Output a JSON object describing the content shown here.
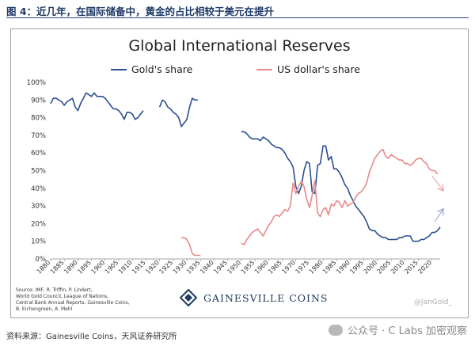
{
  "report": {
    "title": "图 4：近几年，在国际储备中，黄金的占比相较于美元在提升",
    "source": "资料来源：Gainesville Coins，天风证券研究所"
  },
  "watermark": {
    "handle": "@JanGold_",
    "wechat": "公众号 · C Labs 加密观察"
  },
  "colors": {
    "gold": "#2b4f8e",
    "usd": "#e8898a",
    "arrow_gold": "#9aa8d0",
    "arrow_usd": "#efa3a3"
  },
  "brand": {
    "name": "GAINESVILLE COINS",
    "logo_icon": "diamond-logo-icon"
  },
  "chart_data": {
    "type": "line",
    "title": "Global International Reserves",
    "legend_position": "top",
    "xlim": [
      1880,
      2023
    ],
    "ylim": [
      0,
      100
    ],
    "x_ticks": [
      1880,
      1885,
      1890,
      1895,
      1900,
      1905,
      1910,
      1915,
      1920,
      1925,
      1930,
      1935,
      1940,
      1945,
      1950,
      1955,
      1960,
      1965,
      1970,
      1975,
      1980,
      1985,
      1990,
      1995,
      2000,
      2005,
      2010,
      2015,
      2020
    ],
    "y_ticks": [
      0,
      10,
      20,
      30,
      40,
      50,
      60,
      70,
      80,
      90,
      100
    ],
    "y_tick_suffix": "%",
    "source_note": [
      "Source: IMF, R. Triffin, P. Lindert,",
      "World Gold Council, League of Nations,",
      "Central Bank Annual Reports, Gainesville Coins,",
      "B. Eichengreen, A. Mehl"
    ],
    "series": [
      {
        "name": "Gold's share",
        "color": "#2b4f8e",
        "segments": [
          [
            [
              1880,
              88
            ],
            [
              1881,
              91
            ],
            [
              1882,
              91
            ],
            [
              1883,
              90
            ],
            [
              1884,
              89
            ],
            [
              1885,
              87
            ],
            [
              1886,
              89
            ],
            [
              1887,
              90
            ],
            [
              1888,
              91
            ],
            [
              1889,
              86
            ],
            [
              1890,
              84
            ],
            [
              1891,
              88
            ],
            [
              1892,
              91
            ],
            [
              1893,
              94
            ],
            [
              1894,
              93
            ],
            [
              1895,
              92
            ],
            [
              1896,
              94
            ],
            [
              1897,
              92
            ],
            [
              1898,
              92
            ],
            [
              1899,
              92
            ],
            [
              1900,
              91
            ],
            [
              1901,
              89
            ],
            [
              1902,
              87
            ],
            [
              1903,
              85
            ],
            [
              1904,
              85
            ],
            [
              1905,
              84
            ],
            [
              1906,
              82
            ],
            [
              1907,
              79
            ],
            [
              1908,
              83
            ],
            [
              1909,
              83
            ],
            [
              1910,
              82
            ],
            [
              1911,
              79
            ],
            [
              1912,
              80
            ],
            [
              1913,
              82
            ],
            [
              1914,
              84
            ]
          ],
          [
            [
              1920,
              86
            ],
            [
              1921,
              90
            ],
            [
              1922,
              89
            ],
            [
              1923,
              86
            ],
            [
              1924,
              85
            ],
            [
              1925,
              83
            ],
            [
              1926,
              82
            ],
            [
              1927,
              80
            ],
            [
              1928,
              75
            ],
            [
              1929,
              77
            ],
            [
              1930,
              79
            ],
            [
              1931,
              86
            ],
            [
              1932,
              91
            ],
            [
              1933,
              90
            ],
            [
              1934,
              90
            ]
          ],
          [
            [
              1950,
              72
            ],
            [
              1951,
              72
            ],
            [
              1952,
              71
            ],
            [
              1953,
              69
            ],
            [
              1954,
              68
            ],
            [
              1955,
              68
            ],
            [
              1956,
              68
            ],
            [
              1957,
              67
            ],
            [
              1958,
              69
            ],
            [
              1959,
              68
            ],
            [
              1960,
              67
            ],
            [
              1961,
              65
            ],
            [
              1962,
              64
            ],
            [
              1963,
              63
            ],
            [
              1964,
              63
            ],
            [
              1965,
              62
            ],
            [
              1966,
              60
            ],
            [
              1967,
              57
            ],
            [
              1968,
              55
            ],
            [
              1969,
              52
            ],
            [
              1970,
              41
            ],
            [
              1971,
              37
            ],
            [
              1972,
              41
            ],
            [
              1973,
              50
            ],
            [
              1974,
              55
            ],
            [
              1975,
              54
            ],
            [
              1976,
              38
            ],
            [
              1977,
              37
            ],
            [
              1978,
              53
            ],
            [
              1979,
              54
            ],
            [
              1980,
              64
            ],
            [
              1981,
              64
            ],
            [
              1982,
              56
            ],
            [
              1983,
              58
            ],
            [
              1984,
              51
            ],
            [
              1985,
              51
            ],
            [
              1986,
              49
            ],
            [
              1987,
              46
            ],
            [
              1988,
              42
            ],
            [
              1989,
              40
            ],
            [
              1990,
              36
            ],
            [
              1991,
              33
            ],
            [
              1992,
              30
            ],
            [
              1993,
              28
            ],
            [
              1994,
              26
            ],
            [
              1995,
              24
            ],
            [
              1996,
              21
            ],
            [
              1997,
              17
            ],
            [
              1998,
              16
            ],
            [
              1999,
              16
            ],
            [
              2000,
              14
            ],
            [
              2001,
              13
            ],
            [
              2002,
              12
            ],
            [
              2003,
              12
            ],
            [
              2004,
              11
            ],
            [
              2005,
              11
            ],
            [
              2006,
              11
            ],
            [
              2007,
              11
            ],
            [
              2008,
              12
            ],
            [
              2009,
              12
            ],
            [
              2010,
              13
            ],
            [
              2011,
              13
            ],
            [
              2012,
              13
            ],
            [
              2013,
              10
            ],
            [
              2014,
              10
            ],
            [
              2015,
              10
            ],
            [
              2016,
              11
            ],
            [
              2017,
              11
            ],
            [
              2018,
              12
            ],
            [
              2019,
              13
            ],
            [
              2020,
              15
            ],
            [
              2021,
              15
            ],
            [
              2022,
              16
            ],
            [
              2023,
              18
            ]
          ]
        ],
        "trend_arrow": {
          "from": [
            2021,
            21
          ],
          "to": [
            2024,
            28
          ]
        }
      },
      {
        "name": "US dollar's share",
        "color": "#e8898a",
        "segments": [
          [
            [
              1928,
              12
            ],
            [
              1929,
              12
            ],
            [
              1930,
              11
            ],
            [
              1931,
              8
            ],
            [
              1932,
              3
            ],
            [
              1933,
              2
            ],
            [
              1934,
              2
            ],
            [
              1935,
              2
            ]
          ],
          [
            [
              1950,
              9
            ],
            [
              1951,
              8
            ],
            [
              1952,
              11
            ],
            [
              1953,
              13
            ],
            [
              1954,
              15
            ],
            [
              1955,
              16
            ],
            [
              1956,
              17
            ],
            [
              1957,
              15
            ],
            [
              1958,
              13
            ],
            [
              1959,
              16
            ],
            [
              1960,
              19
            ],
            [
              1961,
              21
            ],
            [
              1962,
              24
            ],
            [
              1963,
              25
            ],
            [
              1964,
              24
            ],
            [
              1965,
              26
            ],
            [
              1966,
              28
            ],
            [
              1967,
              27
            ],
            [
              1968,
              30
            ],
            [
              1969,
              43
            ],
            [
              1970,
              37
            ],
            [
              1971,
              41
            ],
            [
              1972,
              44
            ],
            [
              1973,
              41
            ],
            [
              1974,
              34
            ],
            [
              1975,
              29
            ],
            [
              1976,
              36
            ],
            [
              1977,
              44
            ],
            [
              1978,
              26
            ],
            [
              1979,
              24
            ],
            [
              1980,
              28
            ],
            [
              1981,
              29
            ],
            [
              1982,
              25
            ],
            [
              1983,
              31
            ],
            [
              1984,
              30
            ],
            [
              1985,
              33
            ],
            [
              1986,
              32
            ],
            [
              1987,
              29
            ],
            [
              1988,
              33
            ],
            [
              1989,
              30
            ],
            [
              1990,
              31
            ],
            [
              1991,
              32
            ],
            [
              1992,
              35
            ],
            [
              1993,
              37
            ],
            [
              1994,
              38
            ],
            [
              1995,
              40
            ],
            [
              1996,
              43
            ],
            [
              1997,
              49
            ],
            [
              1998,
              53
            ],
            [
              1999,
              57
            ],
            [
              2000,
              59
            ],
            [
              2001,
              61
            ],
            [
              2002,
              62
            ],
            [
              2003,
              58
            ],
            [
              2004,
              57
            ],
            [
              2005,
              59
            ],
            [
              2006,
              58
            ],
            [
              2007,
              57
            ],
            [
              2008,
              56
            ],
            [
              2009,
              56
            ],
            [
              2010,
              54
            ],
            [
              2011,
              54
            ],
            [
              2012,
              53
            ],
            [
              2013,
              54
            ],
            [
              2014,
              56
            ],
            [
              2015,
              57
            ],
            [
              2016,
              57
            ],
            [
              2017,
              55
            ],
            [
              2018,
              54
            ],
            [
              2019,
              51
            ],
            [
              2020,
              50
            ],
            [
              2021,
              50
            ],
            [
              2022,
              48
            ]
          ]
        ],
        "trend_arrow": {
          "from": [
            2020,
            47
          ],
          "to": [
            2024,
            39
          ]
        }
      }
    ]
  }
}
